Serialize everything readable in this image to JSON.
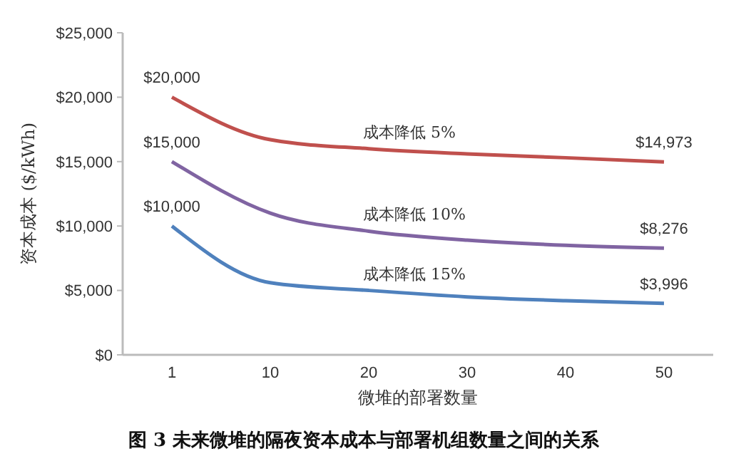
{
  "chart_data": {
    "type": "line",
    "title": "图 3 未来微堆的隔夜资本成本与部署机组数量之间的关系",
    "xlabel": "微堆的部署数量",
    "ylabel": "资本成本 ($/kWh)",
    "categories": [
      "1",
      "10",
      "20",
      "30",
      "40",
      "50"
    ],
    "ylim": [
      0,
      25000
    ],
    "yticks": [
      {
        "value": 0,
        "label": "$0"
      },
      {
        "value": 5000,
        "label": "$5,000"
      },
      {
        "value": 10000,
        "label": "$10,000"
      },
      {
        "value": 15000,
        "label": "$15,000"
      },
      {
        "value": 20000,
        "label": "$20,000"
      },
      {
        "value": 25000,
        "label": "$25,000"
      }
    ],
    "grid": false,
    "marker": "none",
    "line_style": "solid",
    "series": [
      {
        "name": "成本降低 5%",
        "color": "#c0504d",
        "values": [
          20000,
          16700,
          16000,
          15600,
          15300,
          14973
        ],
        "value_labels": [
          "$20,000",
          null,
          null,
          null,
          null,
          "$14,973"
        ]
      },
      {
        "name": "成本降低 10%",
        "color": "#8064a2",
        "values": [
          15000,
          11000,
          9600,
          8900,
          8500,
          8276
        ],
        "value_labels": [
          "$15,000",
          null,
          null,
          null,
          null,
          "$8,276"
        ]
      },
      {
        "name": "成本降低 15%",
        "color": "#4f81bd",
        "values": [
          10000,
          5600,
          5000,
          4500,
          4200,
          3996
        ],
        "value_labels": [
          "$10,000",
          null,
          null,
          null,
          null,
          "$3,996"
        ]
      }
    ]
  }
}
